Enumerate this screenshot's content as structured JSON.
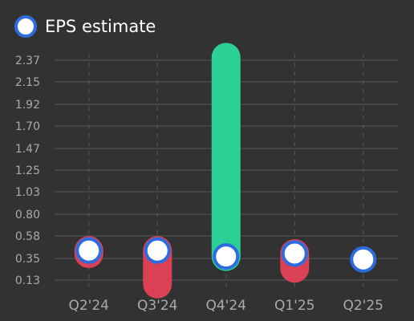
{
  "chart_data": {
    "type": "range-bar",
    "categories": [
      "Q2'24",
      "Q3'24",
      "Q4'24",
      "Q1'25",
      "Q2'25"
    ],
    "series": [
      {
        "name": "EPS estimate",
        "values": [
          0.43,
          0.43,
          0.37,
          0.4,
          0.34
        ]
      }
    ],
    "actuals": [
      0.4,
      0.09,
      2.4,
      0.25,
      null
    ],
    "y_ticks": [
      "0.13",
      "0.35",
      "0.58",
      "0.80",
      "1.03",
      "1.25",
      "1.47",
      "1.70",
      "1.92",
      "2.15",
      "2.37"
    ],
    "ylim": [
      0.13,
      2.37
    ],
    "grid": true,
    "legend_position": "top-left",
    "colors": {
      "beat": "#2ad094",
      "miss": "#dc4055",
      "marker_fill": "#ffffff",
      "marker_stroke": "#2d6cdf",
      "background": "#323232",
      "grid": "#5a5a5a",
      "tick_label": "#aaaaaa"
    }
  }
}
